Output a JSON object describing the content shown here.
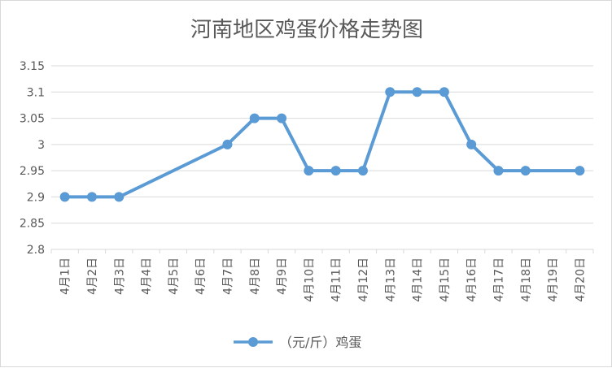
{
  "chart_data": {
    "type": "line",
    "title": "河南地区鸡蛋价格走势图",
    "xlabel": "",
    "ylabel": "",
    "categories": [
      "4月1日",
      "4月2日",
      "4月3日",
      "4月4日",
      "4月5日",
      "4月6日",
      "4月7日",
      "4月8日",
      "4月9日",
      "4月10日",
      "4月11日",
      "4月12日",
      "4月13日",
      "4月14日",
      "4月15日",
      "4月16日",
      "4月17日",
      "4月18日",
      "4月19日",
      "4月20日"
    ],
    "series": [
      {
        "name": "（元/斤）鸡蛋",
        "values": [
          2.9,
          2.9,
          2.9,
          null,
          null,
          null,
          3.0,
          3.05,
          3.05,
          2.95,
          2.95,
          2.95,
          3.1,
          3.1,
          3.1,
          3.0,
          2.95,
          2.95,
          null,
          2.95
        ]
      }
    ],
    "ylim": [
      2.8,
      3.15
    ],
    "yticks": [
      "2.8",
      "2.85",
      "2.9",
      "2.95",
      "3",
      "3.05",
      "3.1",
      "3.15"
    ],
    "ytick_values": [
      2.8,
      2.85,
      2.9,
      2.95,
      3.0,
      3.05,
      3.1,
      3.15
    ],
    "gaps": "connected",
    "grid": true,
    "legend_position": "bottom",
    "colors": {
      "series": "#5b9bd5",
      "grid": "#d9d9d9",
      "text": "#595959",
      "title": "#595959"
    }
  }
}
